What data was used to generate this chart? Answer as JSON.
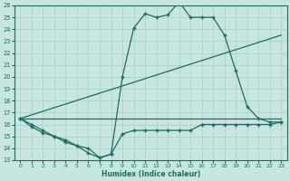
{
  "xlabel": "Humidex (Indice chaleur)",
  "bg_color": "#c8e6e0",
  "line_color": "#1a6e5e",
  "grid_color": "#aacfc8",
  "xlim": [
    -0.5,
    23.5
  ],
  "ylim": [
    13,
    26
  ],
  "yticks": [
    13,
    14,
    15,
    16,
    17,
    18,
    19,
    20,
    21,
    22,
    23,
    24,
    25,
    26
  ],
  "xticks": [
    0,
    1,
    2,
    3,
    4,
    5,
    6,
    7,
    8,
    9,
    10,
    11,
    12,
    13,
    14,
    15,
    16,
    17,
    18,
    19,
    20,
    21,
    22,
    23
  ],
  "line1_x": [
    0,
    1,
    2,
    3,
    4,
    5,
    6,
    7,
    8,
    9,
    10,
    11,
    12,
    13,
    14,
    15,
    16,
    17,
    18,
    19,
    20,
    21,
    22,
    23
  ],
  "line1_y": [
    16.5,
    15.8,
    15.3,
    15.0,
    14.7,
    14.2,
    13.6,
    13.2,
    13.5,
    20.0,
    24.1,
    25.3,
    25.0,
    25.2,
    26.3,
    25.0,
    25.0,
    25.0,
    23.5,
    20.5,
    17.5,
    16.5,
    16.2,
    16.2
  ],
  "line2_x": [
    0,
    23
  ],
  "line2_y": [
    16.5,
    23.5
  ],
  "line3_x": [
    0,
    23
  ],
  "line3_y": [
    16.5,
    16.5
  ],
  "line4_x": [
    0,
    1,
    2,
    3,
    4,
    5,
    6,
    7,
    8,
    9,
    10,
    11,
    12,
    13,
    14,
    15,
    16,
    17,
    18,
    19,
    20,
    21,
    22,
    23
  ],
  "line4_y": [
    16.5,
    16.0,
    15.5,
    15.0,
    14.5,
    14.2,
    14.0,
    13.2,
    13.5,
    15.2,
    15.5,
    15.5,
    15.5,
    15.5,
    15.5,
    15.5,
    16.0,
    16.0,
    16.0,
    16.0,
    16.0,
    16.0,
    16.0,
    16.2
  ]
}
